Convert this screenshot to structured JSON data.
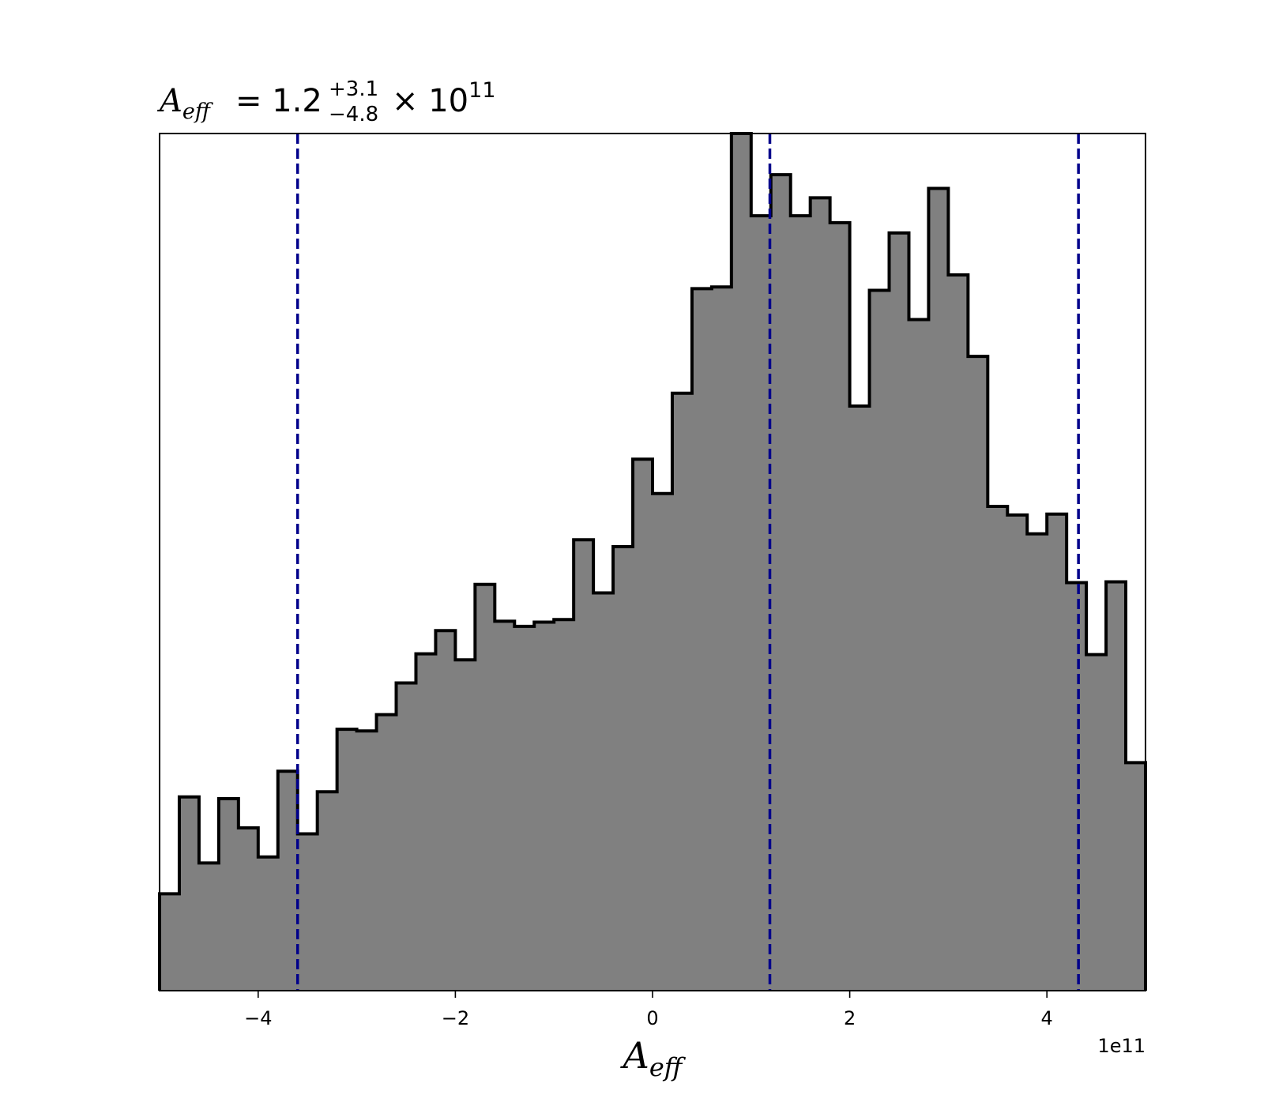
{
  "chart_data": {
    "type": "histogram",
    "title": {
      "symbol": "A",
      "subscript": "eff",
      "equals": "=",
      "value": "1.2",
      "upper": "+3.1",
      "lower": "−4.8",
      "times": "×",
      "base": "10",
      "exponent": "11"
    },
    "xlabel": {
      "symbol": "A",
      "subscript": "eff"
    },
    "ylabel": "",
    "offset_text": "1e11",
    "xlim": [
      -5.0,
      5.0
    ],
    "ylim": [
      0,
      1000
    ],
    "x_ticks": [
      -4,
      -2,
      0,
      2,
      4
    ],
    "x_tick_labels": [
      "−4",
      "−2",
      "0",
      "2",
      "4"
    ],
    "y_ticks_visible": false,
    "bin_edges": [
      -5.0,
      -4.8,
      -4.6,
      -4.4,
      -4.2,
      -4.0,
      -3.8,
      -3.6,
      -3.4,
      -3.2,
      -3.0,
      -2.8,
      -2.6,
      -2.4,
      -2.2,
      -2.0,
      -1.8,
      -1.6,
      -1.4,
      -1.2,
      -1.0,
      -0.8,
      -0.6,
      -0.4,
      -0.2,
      0.0,
      0.2,
      0.4,
      0.6,
      0.8,
      1.0,
      1.2,
      1.4,
      1.6,
      1.8,
      2.0,
      2.2,
      2.4,
      2.6,
      2.8,
      3.0,
      3.2,
      3.4,
      3.6,
      3.8,
      4.0,
      4.2,
      4.4,
      4.6,
      4.8,
      5.0
    ],
    "counts": [
      113,
      226,
      149,
      224,
      190,
      156,
      256,
      183,
      232,
      305,
      303,
      322,
      359,
      393,
      420,
      386,
      474,
      431,
      425,
      430,
      433,
      526,
      464,
      518,
      620,
      580,
      697,
      819,
      821,
      1000,
      904,
      952,
      904,
      925,
      896,
      682,
      817,
      884,
      783,
      936,
      835,
      740,
      565,
      555,
      533,
      556,
      476,
      392,
      477,
      266
    ],
    "fill_color": "#808080",
    "edge_color": "#000000",
    "vlines": [
      {
        "x": -3.6,
        "role": "lower"
      },
      {
        "x": 1.19,
        "role": "median"
      },
      {
        "x": 4.32,
        "role": "upper"
      }
    ],
    "vline_color": "#00008b",
    "vline_style": "dashed",
    "grid": false,
    "legend": "none"
  }
}
